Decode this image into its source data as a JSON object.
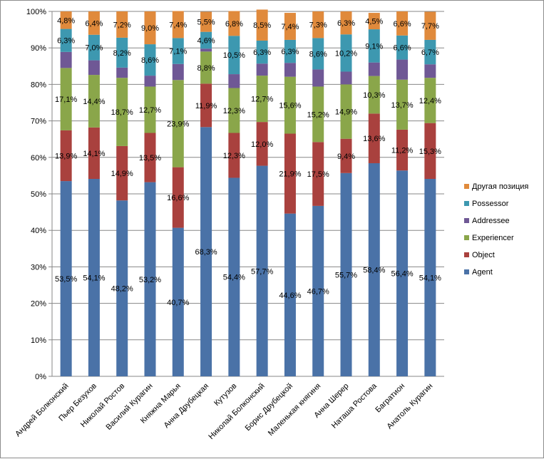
{
  "chart_data": {
    "type": "bar",
    "stacked": true,
    "normalized": true,
    "title": "",
    "xlabel": "",
    "ylabel": "",
    "ylim": [
      0,
      100
    ],
    "y_ticks": [
      "0%",
      "10%",
      "20%",
      "30%",
      "40%",
      "50%",
      "60%",
      "70%",
      "80%",
      "90%",
      "100%"
    ],
    "grid": true,
    "legend_position": "right",
    "categories": [
      "Андрей Болконский",
      "Пьер Безухов",
      "Николай Ростов",
      "Василий Курагин",
      "Княжна Марья",
      "Анна Друбецкая",
      "Кутузов",
      "Николай Болконский",
      "Борис Друбецкой",
      "Маленькая княгиня",
      "Анна Шерер",
      "Наташа Ростова",
      "Багратион",
      "Анатоль Курагин"
    ],
    "series": [
      {
        "name": "Agent",
        "color": "#4a72a7",
        "values": [
          53.5,
          54.1,
          48.2,
          53.2,
          40.7,
          68.3,
          54.4,
          57.7,
          44.6,
          46.7,
          55.7,
          58.4,
          56.4,
          54.1
        ],
        "labels": [
          "53,5%",
          "54,1%",
          "48,2%",
          "53,2%",
          "40,7%",
          "68,3%",
          "54,4%",
          "57,7%",
          "44,6%",
          "46,7%",
          "55,7%",
          "58,4%",
          "56,4%",
          "54,1%"
        ]
      },
      {
        "name": "Object",
        "color": "#a9413e",
        "values": [
          13.9,
          14.1,
          14.9,
          13.5,
          16.6,
          11.9,
          12.3,
          12.0,
          21.9,
          17.5,
          9.4,
          13.6,
          11.2,
          15.3
        ],
        "labels": [
          "13,9%",
          "14,1%",
          "14,9%",
          "13,5%",
          "16,6%",
          "11,9%",
          "12,3%",
          "12,0%",
          "21,9%",
          "17,5%",
          "9,4%",
          "13,6%",
          "11,2%",
          "15,3%"
        ]
      },
      {
        "name": "Experiencer",
        "color": "#8aa64a",
        "values": [
          17.1,
          14.4,
          18.7,
          12.7,
          23.9,
          8.8,
          12.3,
          12.7,
          15.6,
          15.2,
          14.9,
          10.3,
          13.7,
          12.4
        ],
        "labels": [
          "17,1%",
          "14,4%",
          "18,7%",
          "12,7%",
          "23,9%",
          "8,8%",
          "12,3%",
          "12,7%",
          "15,6%",
          "15,2%",
          "14,9%",
          "10,3%",
          "13,7%",
          "12,4%"
        ]
      },
      {
        "name": "Addressee",
        "color": "#6f5895",
        "values": [
          4.4,
          4.0,
          2.8,
          3.0,
          4.4,
          0.8,
          3.8,
          3.3,
          3.8,
          4.7,
          3.5,
          3.7,
          5.5,
          3.7
        ],
        "labels": [
          "",
          "",
          "",
          "",
          "",
          "",
          "",
          "",
          "",
          "",
          "",
          "",
          "",
          ""
        ]
      },
      {
        "name": "Possessor",
        "color": "#3d98b0",
        "values": [
          6.3,
          7.0,
          8.2,
          8.6,
          7.1,
          4.6,
          10.5,
          6.3,
          6.3,
          8.6,
          10.2,
          9.1,
          6.6,
          6.7
        ],
        "labels": [
          "6,3%",
          "7,0%",
          "8,2%",
          "8,6%",
          "7,1%",
          "4,6%",
          "10,5%",
          "6,3%",
          "6,3%",
          "8,6%",
          "10,2%",
          "9,1%",
          "6,6%",
          "6,7%"
        ]
      },
      {
        "name": "Другая позиция",
        "color": "#e08a3c",
        "values": [
          4.8,
          6.4,
          7.2,
          9.0,
          7.4,
          5.5,
          6.8,
          8.5,
          7.4,
          7.3,
          6.3,
          4.5,
          6.6,
          7.7
        ],
        "labels": [
          "4,8%",
          "6,4%",
          "7,2%",
          "9,0%",
          "7,4%",
          "5,5%",
          "6,8%",
          "8,5%",
          "7,4%",
          "7,3%",
          "6,3%",
          "4,5%",
          "6,6%",
          "7,7%"
        ]
      }
    ]
  }
}
